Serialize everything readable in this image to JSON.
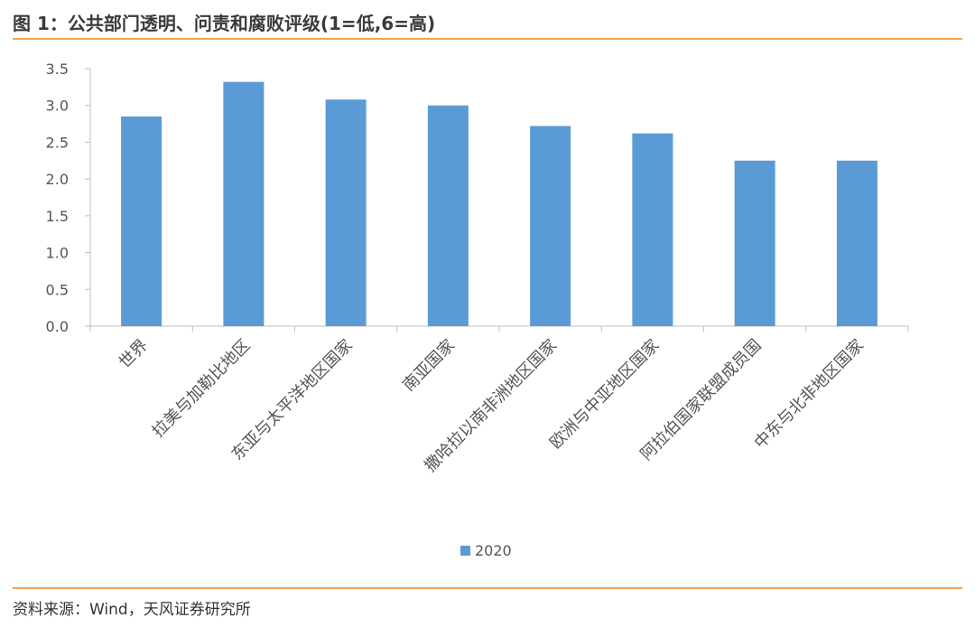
{
  "header": {
    "title": "图 1：公共部门透明、问责和腐败评级(1=低,6=高)"
  },
  "footer": {
    "source": "资料来源：Wind，天风证券研究所"
  },
  "chart_data": {
    "type": "bar",
    "categories": [
      "世界",
      "拉美与加勒比地区",
      "东亚与太平洋地区国家",
      "南亚国家",
      "撒哈拉以南非洲地区国家",
      "欧洲与中亚地区国家",
      "阿拉伯国家联盟成员国",
      "中东与北非地区国家"
    ],
    "series": [
      {
        "name": "2020",
        "values": [
          2.85,
          3.32,
          3.08,
          3.0,
          2.72,
          2.62,
          2.25,
          2.25
        ],
        "color": "#5b9bd5"
      }
    ],
    "ylim": [
      0,
      3.5
    ],
    "yticks": [
      "0.0",
      "0.5",
      "1.0",
      "1.5",
      "2.0",
      "2.5",
      "3.0",
      "3.5"
    ],
    "grid": false,
    "legend": "bottom",
    "axis_color": "#bfbfbf"
  }
}
